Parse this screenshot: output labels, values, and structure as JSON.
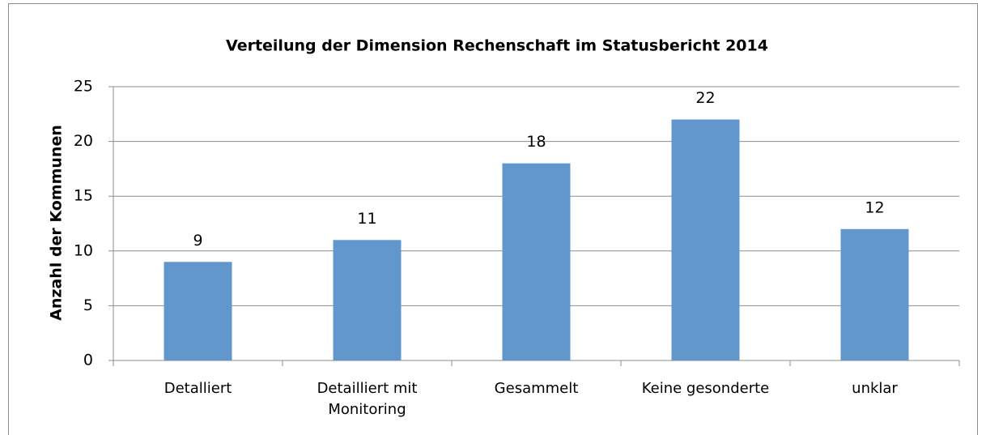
{
  "chart_data": {
    "type": "bar",
    "title": "Verteilung der Dimension Rechenschaft  im Statusbericht 2014",
    "y_label": "Anzahl der  Kommunen",
    "categories": [
      "Detalliert",
      "Detailliert mit Monitoring",
      "Gesammelt",
      "Keine gesonderte",
      "unklar"
    ],
    "values": [
      9,
      11,
      18,
      22,
      12
    ],
    "color": "#6197cd",
    "ylim": [
      0,
      25
    ],
    "yticks": [
      0,
      5,
      10,
      15,
      20,
      25
    ],
    "grid": true
  }
}
